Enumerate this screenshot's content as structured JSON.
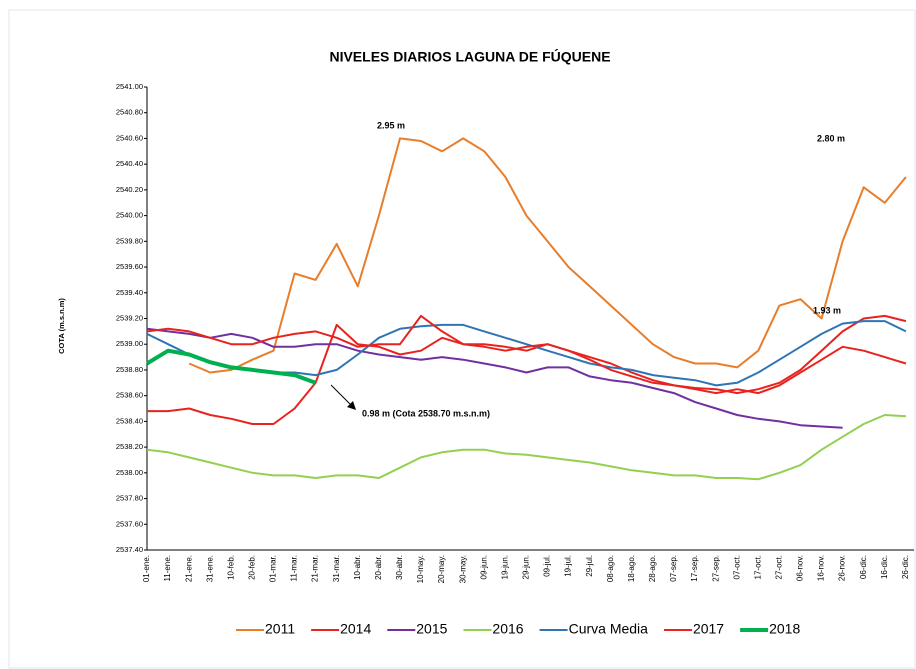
{
  "chart_data": {
    "type": "line",
    "title": "NIVELES DIARIOS LAGUNA DE FÚQUENE",
    "y_label": "COTA (m.s.n.m)",
    "categories": [
      "01-ene.",
      "11-ene.",
      "21-ene.",
      "31-ene.",
      "10-feb.",
      "20-feb.",
      "01-mar.",
      "11-mar.",
      "21-mar.",
      "31-mar.",
      "10-abr.",
      "20-abr.",
      "30-abr.",
      "10-may.",
      "20-may.",
      "30-may.",
      "09-jun.",
      "19-jun.",
      "29-jun.",
      "09-jul.",
      "19-jul.",
      "29-jul.",
      "08-ago.",
      "18-ago.",
      "28-ago.",
      "07-sep.",
      "17-sep.",
      "27-sep.",
      "07-oct.",
      "17-oct.",
      "27-oct.",
      "06-nov.",
      "16-nov.",
      "26-nov.",
      "06-dic.",
      "16-dic.",
      "26-dic."
    ],
    "ylim": [
      2537.4,
      2541.0
    ],
    "yticks": [
      {
        "value": 2537.4,
        "label": "2537.40"
      },
      {
        "value": 2537.6,
        "label": "2537.60"
      },
      {
        "value": 2537.8,
        "label": "2537.80"
      },
      {
        "value": 2538.0,
        "label": "2538.00"
      },
      {
        "value": 2538.2,
        "label": "2538.20"
      },
      {
        "value": 2538.4,
        "label": "2538.40"
      },
      {
        "value": 2538.6,
        "label": "2538.60"
      },
      {
        "value": 2538.8,
        "label": "2538.80"
      },
      {
        "value": 2539.0,
        "label": "2539.00"
      },
      {
        "value": 2539.2,
        "label": "2539.20"
      },
      {
        "value": 2539.4,
        "label": "2539.40"
      },
      {
        "value": 2539.6,
        "label": "2539.60"
      },
      {
        "value": 2539.8,
        "label": "2539.80"
      },
      {
        "value": 2540.0,
        "label": "2540.00"
      },
      {
        "value": 2540.2,
        "label": "2540.20"
      },
      {
        "value": 2540.4,
        "label": "2540.40"
      },
      {
        "value": 2540.6,
        "label": "2540.60"
      },
      {
        "value": 2540.8,
        "label": "2540.80"
      },
      {
        "value": 2541.0,
        "label": "2541.00"
      }
    ],
    "grid": false,
    "legend_position": "bottom",
    "series": [
      {
        "name": "2011",
        "color": "#e87d2a",
        "width": 2,
        "values": [
          null,
          null,
          2538.85,
          2538.78,
          2538.8,
          2538.88,
          2538.95,
          2539.55,
          2539.5,
          2539.78,
          2539.45,
          2540.0,
          2540.6,
          2540.58,
          2540.5,
          2540.6,
          2540.5,
          2540.3,
          2540.0,
          2539.8,
          2539.6,
          2539.45,
          2539.3,
          2539.15,
          2539.0,
          2538.9,
          2538.85,
          2538.85,
          2538.82,
          2538.95,
          2539.3,
          2539.35,
          2539.2,
          2539.8,
          2540.22,
          2540.1,
          2540.3
        ]
      },
      {
        "name": "2014",
        "color": "#e8231e",
        "width": 2,
        "values": [
          2538.48,
          2538.48,
          2538.5,
          2538.45,
          2538.42,
          2538.38,
          2538.38,
          2538.5,
          2538.7,
          2539.15,
          2539.0,
          2538.98,
          2538.92,
          2538.95,
          2539.05,
          2539.0,
          2539.0,
          2538.98,
          2538.95,
          2539.0,
          2538.95,
          2538.9,
          2538.85,
          2538.78,
          2538.72,
          2538.68,
          2538.66,
          2538.65,
          2538.62,
          2538.65,
          2538.7,
          2538.8,
          2538.95,
          2539.1,
          2539.2,
          2539.22,
          2539.18
        ]
      },
      {
        "name": "2015",
        "color": "#7030a0",
        "width": 2,
        "values": [
          2539.12,
          2539.1,
          2539.08,
          2539.05,
          2539.08,
          2539.05,
          2538.98,
          2538.98,
          2539.0,
          2539.0,
          2538.95,
          2538.92,
          2538.9,
          2538.88,
          2538.9,
          2538.88,
          2538.85,
          2538.82,
          2538.78,
          2538.82,
          2538.82,
          2538.75,
          2538.72,
          2538.7,
          2538.66,
          2538.62,
          2538.55,
          2538.5,
          2538.45,
          2538.42,
          2538.4,
          2538.37,
          2538.36,
          2538.35,
          null,
          null,
          null
        ]
      },
      {
        "name": "2016",
        "color": "#92d050",
        "width": 2,
        "values": [
          2538.18,
          2538.16,
          2538.12,
          2538.08,
          2538.04,
          2538.0,
          2537.98,
          2537.98,
          2537.96,
          2537.98,
          2537.98,
          2537.96,
          2538.04,
          2538.12,
          2538.16,
          2538.18,
          2538.18,
          2538.15,
          2538.14,
          2538.12,
          2538.1,
          2538.08,
          2538.05,
          2538.02,
          2538.0,
          2537.98,
          2537.98,
          2537.96,
          2537.96,
          2537.95,
          2538.0,
          2538.06,
          2538.18,
          2538.28,
          2538.38,
          2538.45,
          2538.44
        ]
      },
      {
        "name": "Curva Media",
        "color": "#2e75b6",
        "width": 2,
        "values": [
          2539.08,
          2539.0,
          2538.92,
          2538.86,
          2538.82,
          2538.8,
          2538.78,
          2538.78,
          2538.76,
          2538.8,
          2538.92,
          2539.05,
          2539.12,
          2539.14,
          2539.15,
          2539.15,
          2539.1,
          2539.05,
          2539.0,
          2538.95,
          2538.9,
          2538.85,
          2538.82,
          2538.8,
          2538.76,
          2538.74,
          2538.72,
          2538.68,
          2538.7,
          2538.78,
          2538.88,
          2538.98,
          2539.08,
          2539.16,
          2539.18,
          2539.18,
          2539.1
        ]
      },
      {
        "name": "2017",
        "color": "#e8231e",
        "width": 2,
        "values": [
          2539.1,
          2539.12,
          2539.1,
          2539.05,
          2539.0,
          2539.0,
          2539.05,
          2539.08,
          2539.1,
          2539.05,
          2538.98,
          2539.0,
          2539.0,
          2539.22,
          2539.1,
          2539.0,
          2538.98,
          2538.95,
          2538.98,
          2539.0,
          2538.95,
          2538.88,
          2538.8,
          2538.75,
          2538.7,
          2538.68,
          2538.65,
          2538.62,
          2538.65,
          2538.62,
          2538.68,
          2538.78,
          2538.88,
          2538.98,
          2538.95,
          2538.9,
          2538.85
        ]
      },
      {
        "name": "2018",
        "color": "#00b050",
        "width": 4,
        "values": [
          2538.85,
          2538.95,
          2538.92,
          2538.86,
          2538.82,
          2538.8,
          2538.78,
          2538.76,
          2538.7,
          null,
          null,
          null,
          null,
          null,
          null,
          null,
          null,
          null,
          null,
          null,
          null,
          null,
          null,
          null,
          null,
          null,
          null,
          null,
          null,
          null,
          null,
          null,
          null,
          null,
          null,
          null,
          null
        ]
      }
    ],
    "annotations": [
      "2.95 m",
      "2.80 m",
      "1.93 m",
      "0.98 m (Cota 2538.70 m.s.n.m)"
    ]
  }
}
